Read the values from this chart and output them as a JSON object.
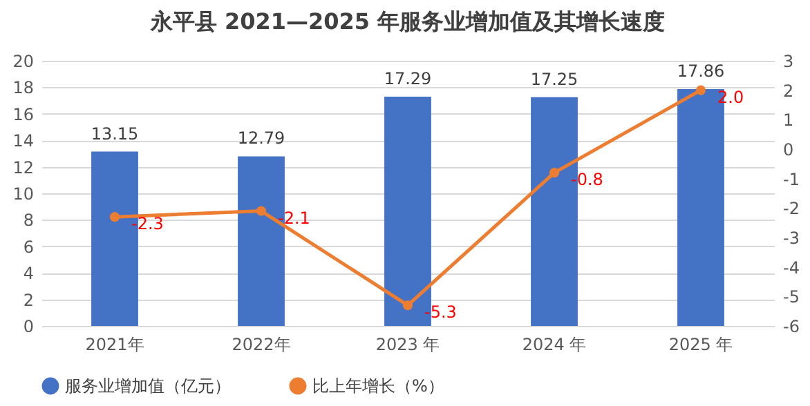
{
  "chart_data": {
    "type": "bar",
    "title": "永平县 2021—2025 年服务业增加值及其增长速度",
    "categories": [
      "2021年",
      "2022年",
      "2023 年",
      "2024 年",
      "2025 年"
    ],
    "series": [
      {
        "name": "服务业增加值（亿元）",
        "color": "#4472c4",
        "values": [
          13.15,
          12.79,
          17.29,
          17.25,
          17.86
        ],
        "value_labels": [
          "13.15",
          "12.79",
          "17.29",
          "17.25",
          "17.86"
        ]
      },
      {
        "name": "比上年增长（%）",
        "type": "line",
        "axis": "y2",
        "color": "#ed7d31",
        "values": [
          -2.3,
          -2.1,
          -5.3,
          -0.8,
          2.0
        ],
        "value_labels": [
          "-2.3",
          "-2.1",
          "-5.3",
          "-0.8",
          "2.0"
        ]
      }
    ],
    "ylim": [
      0,
      20
    ],
    "yticks": [
      0,
      2,
      4,
      6,
      8,
      10,
      12,
      14,
      16,
      18,
      20
    ],
    "y2lim": [
      -6,
      3
    ],
    "y2ticks": [
      -6,
      -5,
      -4,
      -3,
      -2,
      -1,
      0,
      1,
      2,
      3
    ],
    "grid": "y",
    "legend": "bottom",
    "marker": "circle"
  }
}
